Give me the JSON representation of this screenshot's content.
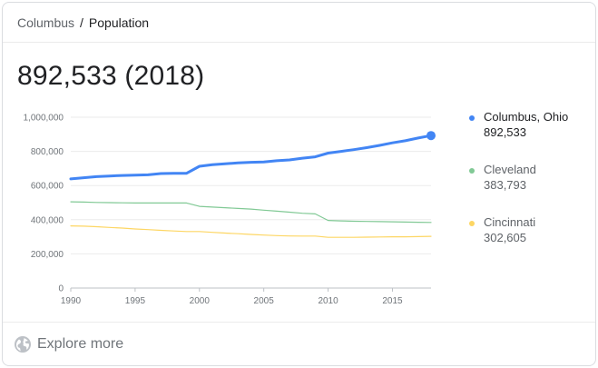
{
  "breadcrumb": {
    "parent": "Columbus",
    "separator": "/",
    "current": "Population"
  },
  "headline": "892,533 (2018)",
  "legend": [
    {
      "name": "Columbus, Ohio",
      "value": "892,533",
      "color": "#4285f4"
    },
    {
      "name": "Cleveland",
      "value": "383,793",
      "color": "#81c995"
    },
    {
      "name": "Cincinnati",
      "value": "302,605",
      "color": "#fdd663"
    }
  ],
  "footer": {
    "explore_label": "Explore more",
    "icon": "globe-icon"
  },
  "chart_data": {
    "type": "line",
    "title": "",
    "xlabel": "",
    "ylabel": "",
    "xlim": [
      1990,
      2018
    ],
    "ylim": [
      0,
      1000000
    ],
    "x_ticks": [
      1990,
      1995,
      2000,
      2005,
      2010,
      2015
    ],
    "y_ticks": [
      0,
      200000,
      400000,
      600000,
      800000,
      1000000
    ],
    "x_tick_labels": [
      "1990",
      "1995",
      "2000",
      "2005",
      "2010",
      "2015"
    ],
    "y_tick_labels": [
      "0",
      "200,000",
      "400,000",
      "600,000",
      "800,000",
      "1,000,000"
    ],
    "grid": "horizontal",
    "legend_position": "right",
    "x": [
      1990,
      1991,
      1992,
      1993,
      1994,
      1995,
      1996,
      1997,
      1998,
      1999,
      2000,
      2001,
      2002,
      2003,
      2004,
      2005,
      2006,
      2007,
      2008,
      2009,
      2010,
      2011,
      2012,
      2013,
      2014,
      2015,
      2016,
      2017,
      2018
    ],
    "series": [
      {
        "name": "Columbus, Ohio",
        "color": "#4285f4",
        "values": [
          639000,
          646000,
          652000,
          656000,
          659000,
          661000,
          663000,
          670000,
          672000,
          672000,
          713000,
          722000,
          727000,
          733000,
          736000,
          738000,
          745000,
          750000,
          760000,
          768000,
          790000,
          800000,
          810000,
          822000,
          835000,
          850000,
          862000,
          878000,
          892533
        ],
        "highlight_last": true
      },
      {
        "name": "Cleveland",
        "color": "#81c995",
        "values": [
          505000,
          503000,
          501000,
          500000,
          499000,
          498000,
          498000,
          498000,
          498000,
          498000,
          478000,
          474000,
          470000,
          466000,
          462000,
          456000,
          450000,
          444000,
          438000,
          434000,
          396000,
          393000,
          391000,
          390000,
          389000,
          388000,
          386000,
          385000,
          383793
        ]
      },
      {
        "name": "Cincinnati",
        "color": "#fdd663",
        "values": [
          364000,
          362000,
          359000,
          355000,
          351000,
          346000,
          342000,
          338000,
          334000,
          331000,
          331000,
          326000,
          322000,
          318000,
          314000,
          310000,
          307000,
          305000,
          304000,
          304000,
          297000,
          297000,
          297000,
          298000,
          299000,
          300000,
          300000,
          301000,
          302605
        ]
      }
    ]
  }
}
